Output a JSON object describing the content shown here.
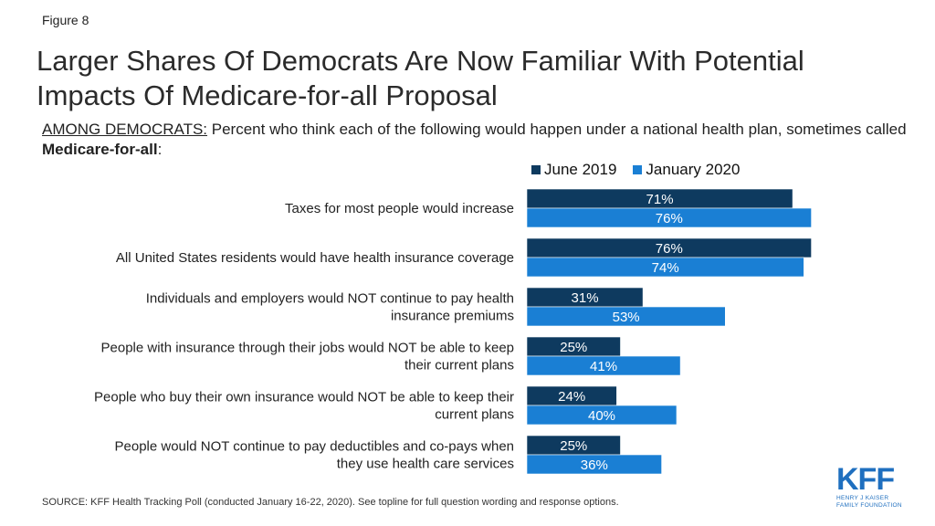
{
  "figure_label": "Figure 8",
  "subtitle": {
    "lead": "AMONG DEMOCRATS:",
    "text": " Percent who think each of the following would happen under a national health plan, sometimes called ",
    "bold": "Medicare-for-all",
    "tail": ":"
  },
  "source": "SOURCE: KFF Health Tracking Poll (conducted January 16-22, 2020). See topline for full question wording and response options.",
  "logo": {
    "mark": "KFF",
    "sub_line1": "HENRY J KAISER",
    "sub_line2": "FAMILY FOUNDATION"
  },
  "colors": {
    "june_2019": "#0e3a5f",
    "january_2020": "#1a7fd4"
  },
  "chart_data": {
    "type": "bar",
    "orientation": "horizontal",
    "title": "Larger Shares Of Democrats Are Now Familiar With Potential Impacts Of Medicare-for-all Proposal",
    "categories": [
      [
        "Taxes for most people would increase"
      ],
      [
        "All United States residents would have health insurance coverage"
      ],
      [
        "Individuals and employers would NOT continue to pay health",
        "insurance premiums"
      ],
      [
        "People with insurance through their jobs would NOT be able to keep",
        "their current plans"
      ],
      [
        "People who buy their own insurance would NOT be able to keep their",
        "current plans"
      ],
      [
        "People would NOT continue to pay deductibles and co-pays when",
        "they use health care services"
      ]
    ],
    "series": [
      {
        "name": "June 2019",
        "values": [
          71,
          76,
          31,
          25,
          24,
          25
        ]
      },
      {
        "name": "January 2020",
        "values": [
          76,
          74,
          53,
          41,
          40,
          36
        ]
      }
    ],
    "value_suffix": "%",
    "xlim": [
      0,
      100
    ],
    "legend_position": "top",
    "grid": false
  }
}
